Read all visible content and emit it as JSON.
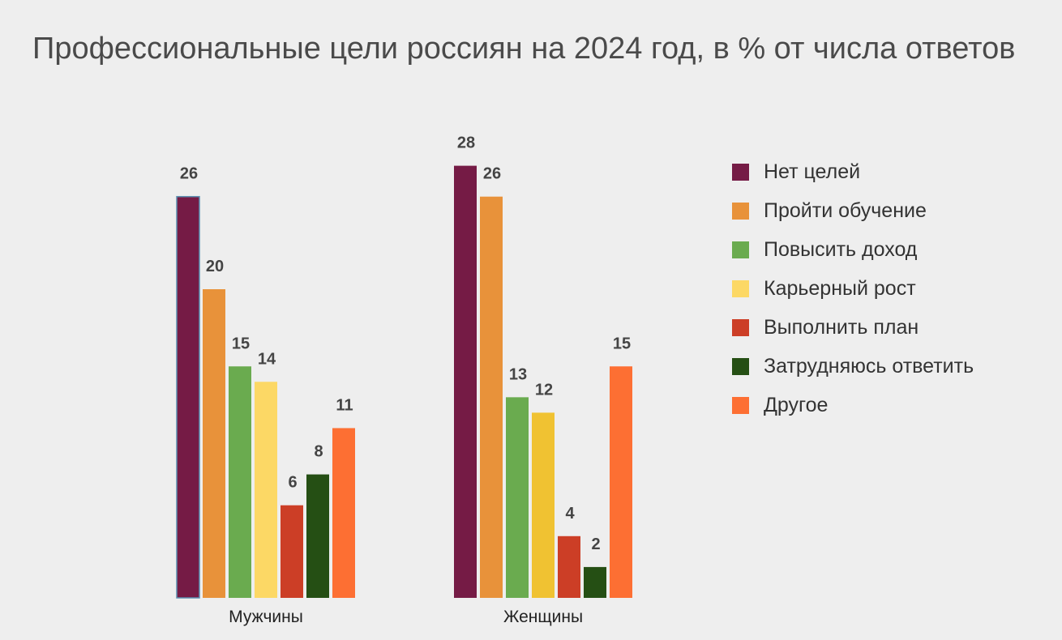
{
  "chart_data": {
    "type": "bar",
    "title": "Профессиональные цели россиян на 2024 год, в % от числа ответов",
    "categories": [
      "Мужчины",
      "Женщины"
    ],
    "series": [
      {
        "name": "Нет целей",
        "values": [
          26,
          28
        ],
        "colors": [
          "#751b45",
          "#751b45"
        ]
      },
      {
        "name": "Пройти обучение",
        "values": [
          20,
          26
        ],
        "colors": [
          "#e8923a",
          "#e8923a"
        ]
      },
      {
        "name": "Повысить доход",
        "values": [
          15,
          13
        ],
        "colors": [
          "#6aab4f",
          "#6aab4f"
        ]
      },
      {
        "name": "Карьерный рост",
        "values": [
          14,
          12
        ],
        "colors": [
          "#fcd865",
          "#f0c232"
        ]
      },
      {
        "name": "Выполнить план",
        "values": [
          6,
          4
        ],
        "colors": [
          "#cc3e26",
          "#cc3e26"
        ]
      },
      {
        "name": "Затрудняюсь ответить",
        "values": [
          8,
          2
        ],
        "colors": [
          "#254f14",
          "#254f14"
        ]
      },
      {
        "name": "Другое",
        "values": [
          11,
          15
        ],
        "colors": [
          "#fd6f33",
          "#fd6f33"
        ]
      }
    ],
    "ylim": [
      0,
      28
    ],
    "grid": false,
    "legend_position": "right",
    "highlight": {
      "series": 0,
      "category": 0,
      "outline_color": "#5b8fb0"
    }
  }
}
